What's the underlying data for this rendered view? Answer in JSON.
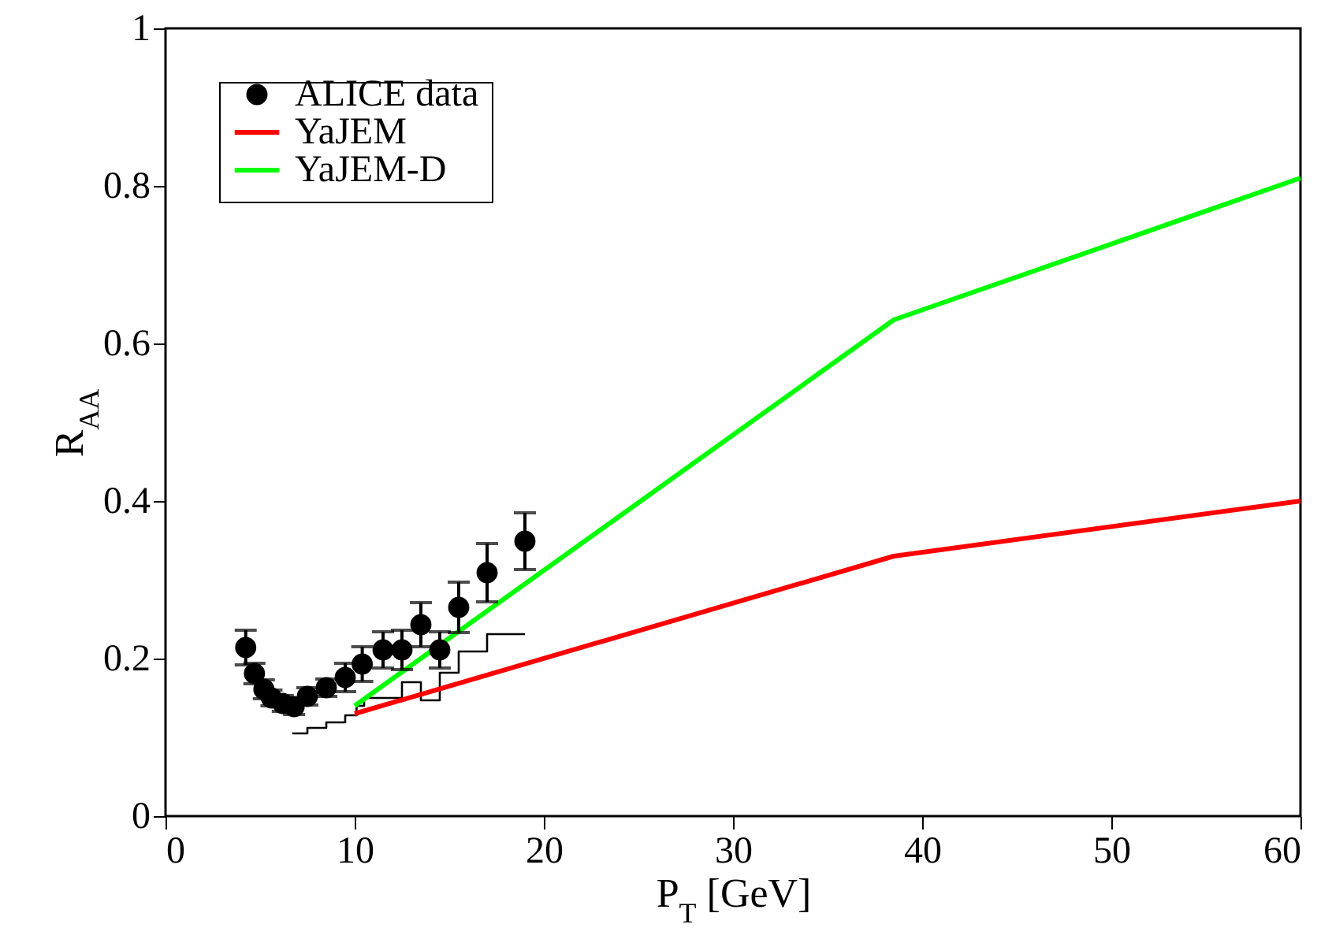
{
  "chart_data": {
    "type": "scatter",
    "xlabel": "P$_{T}$ [GeV]",
    "ylabel": "R$_{AA}$",
    "xlim": [
      0,
      60
    ],
    "xticks": [
      0,
      10,
      20,
      30,
      40,
      50,
      60
    ],
    "ylim": [
      0,
      1
    ],
    "yticks": [
      0,
      0.2,
      0.4,
      0.6,
      0.8,
      1
    ],
    "grid": false,
    "legend": "top left",
    "series": [
      {
        "name": "ALICE data",
        "marker": "circle",
        "color": "#000000",
        "x": [
          4.24,
          4.7,
          5.2,
          5.6,
          6.2,
          6.8,
          7.5,
          8.5,
          9.5,
          10.4,
          11.5,
          12.5,
          13.5,
          14.5,
          15.5,
          17.0,
          19.0
        ],
        "values": [
          0.214,
          0.181,
          0.161,
          0.15,
          0.143,
          0.139,
          0.152,
          0.163,
          0.176,
          0.193,
          0.211,
          0.211,
          0.243,
          0.211,
          0.265,
          0.309,
          0.349
        ],
        "errors": [
          0.022,
          0.013,
          0.012,
          0.01,
          0.01,
          0.01,
          0.011,
          0.011,
          0.018,
          0.022,
          0.023,
          0.025,
          0.028,
          0.023,
          0.032,
          0.037,
          0.036
        ]
      },
      {
        "type": "step",
        "color": "#000000",
        "x": [
          6.7,
          7.5,
          8.5,
          9.5,
          10.1,
          10.5,
          12.5,
          13.5,
          14.5,
          15.5,
          17,
          19
        ],
        "values": [
          0.105,
          0.112,
          0.119,
          0.128,
          0.14,
          0.15,
          0.17,
          0.147,
          0.182,
          0.209,
          0.231,
          0.231
        ]
      },
      {
        "name": "YaJEM",
        "type": "line",
        "color": "#ff0000",
        "x": [
          10,
          38.5,
          60
        ],
        "values": [
          0.13,
          0.33,
          0.4
        ]
      },
      {
        "name": "YaJEM-D",
        "type": "line",
        "color": "#00ff00",
        "x": [
          10,
          38.5,
          60
        ],
        "values": [
          0.14,
          0.63,
          0.81
        ]
      }
    ]
  }
}
